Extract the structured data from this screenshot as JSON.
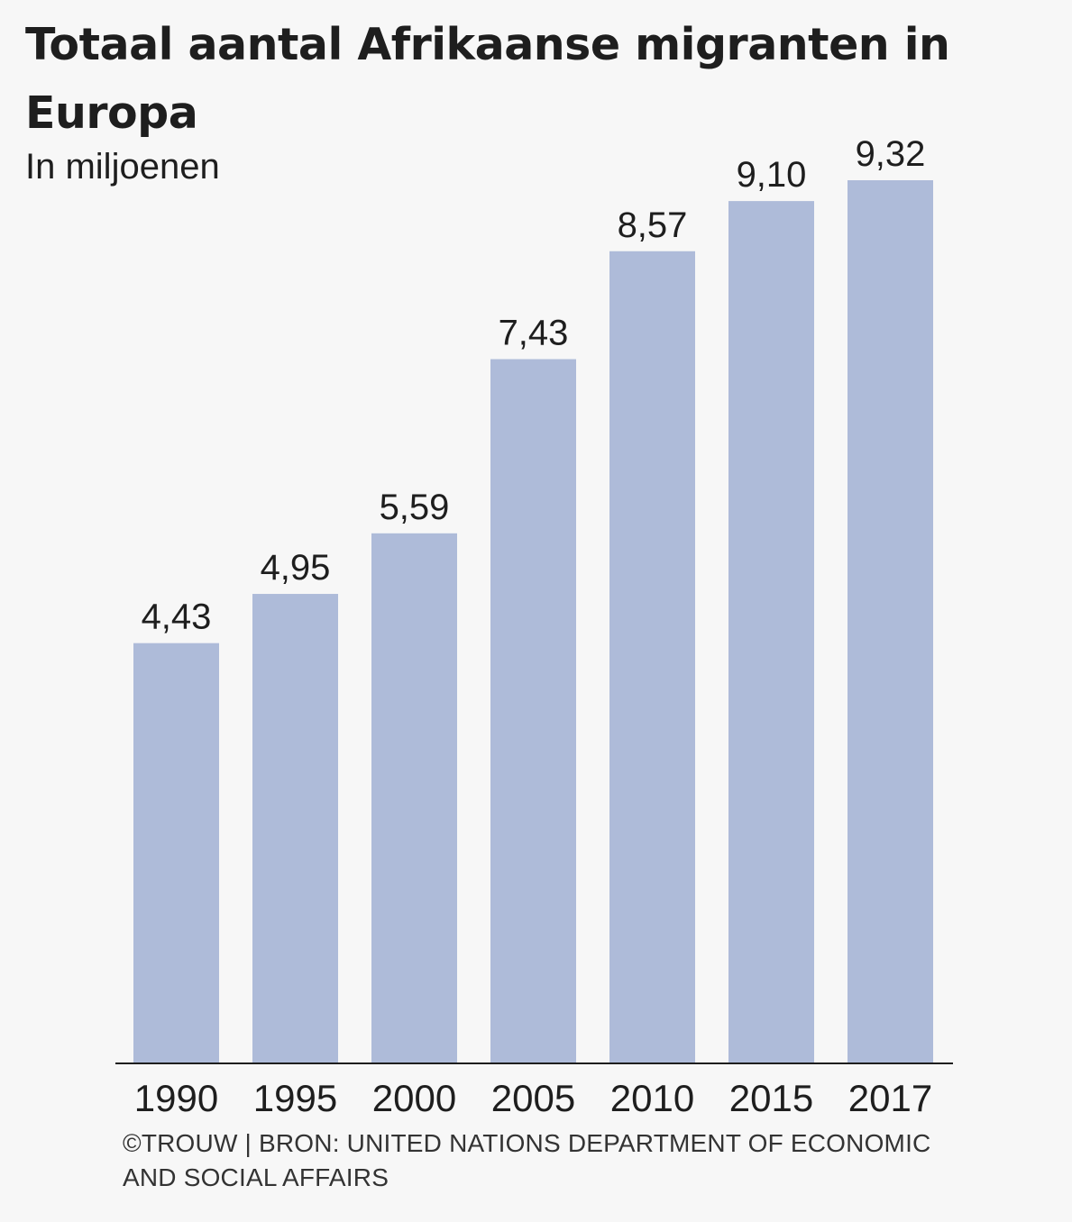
{
  "title": "Totaal aantal Afrikaanse migranten in Europa",
  "subtitle": "In miljoenen",
  "source": "©TROUW | BRON: UNITED NATIONS DEPARTMENT OF ECONOMIC AND SOCIAL AFFAIRS",
  "colors": {
    "bar": "#aebbd9",
    "text": "#1e1e1e",
    "background": "#f7f7f7"
  },
  "chart_data": {
    "type": "bar",
    "title": "Totaal aantal Afrikaanse migranten in Europa",
    "subtitle": "In miljoenen",
    "categories": [
      "1990",
      "1995",
      "2000",
      "2005",
      "2010",
      "2015",
      "2017"
    ],
    "values": [
      4.43,
      4.95,
      5.59,
      7.43,
      8.57,
      9.1,
      9.32
    ],
    "value_labels": [
      "4,43",
      "4,95",
      "5,59",
      "7,43",
      "8,57",
      "9,10",
      "9,32"
    ],
    "xlabel": "",
    "ylabel": "",
    "ylim": [
      0,
      9.32
    ],
    "grid": false,
    "legend": "none"
  }
}
